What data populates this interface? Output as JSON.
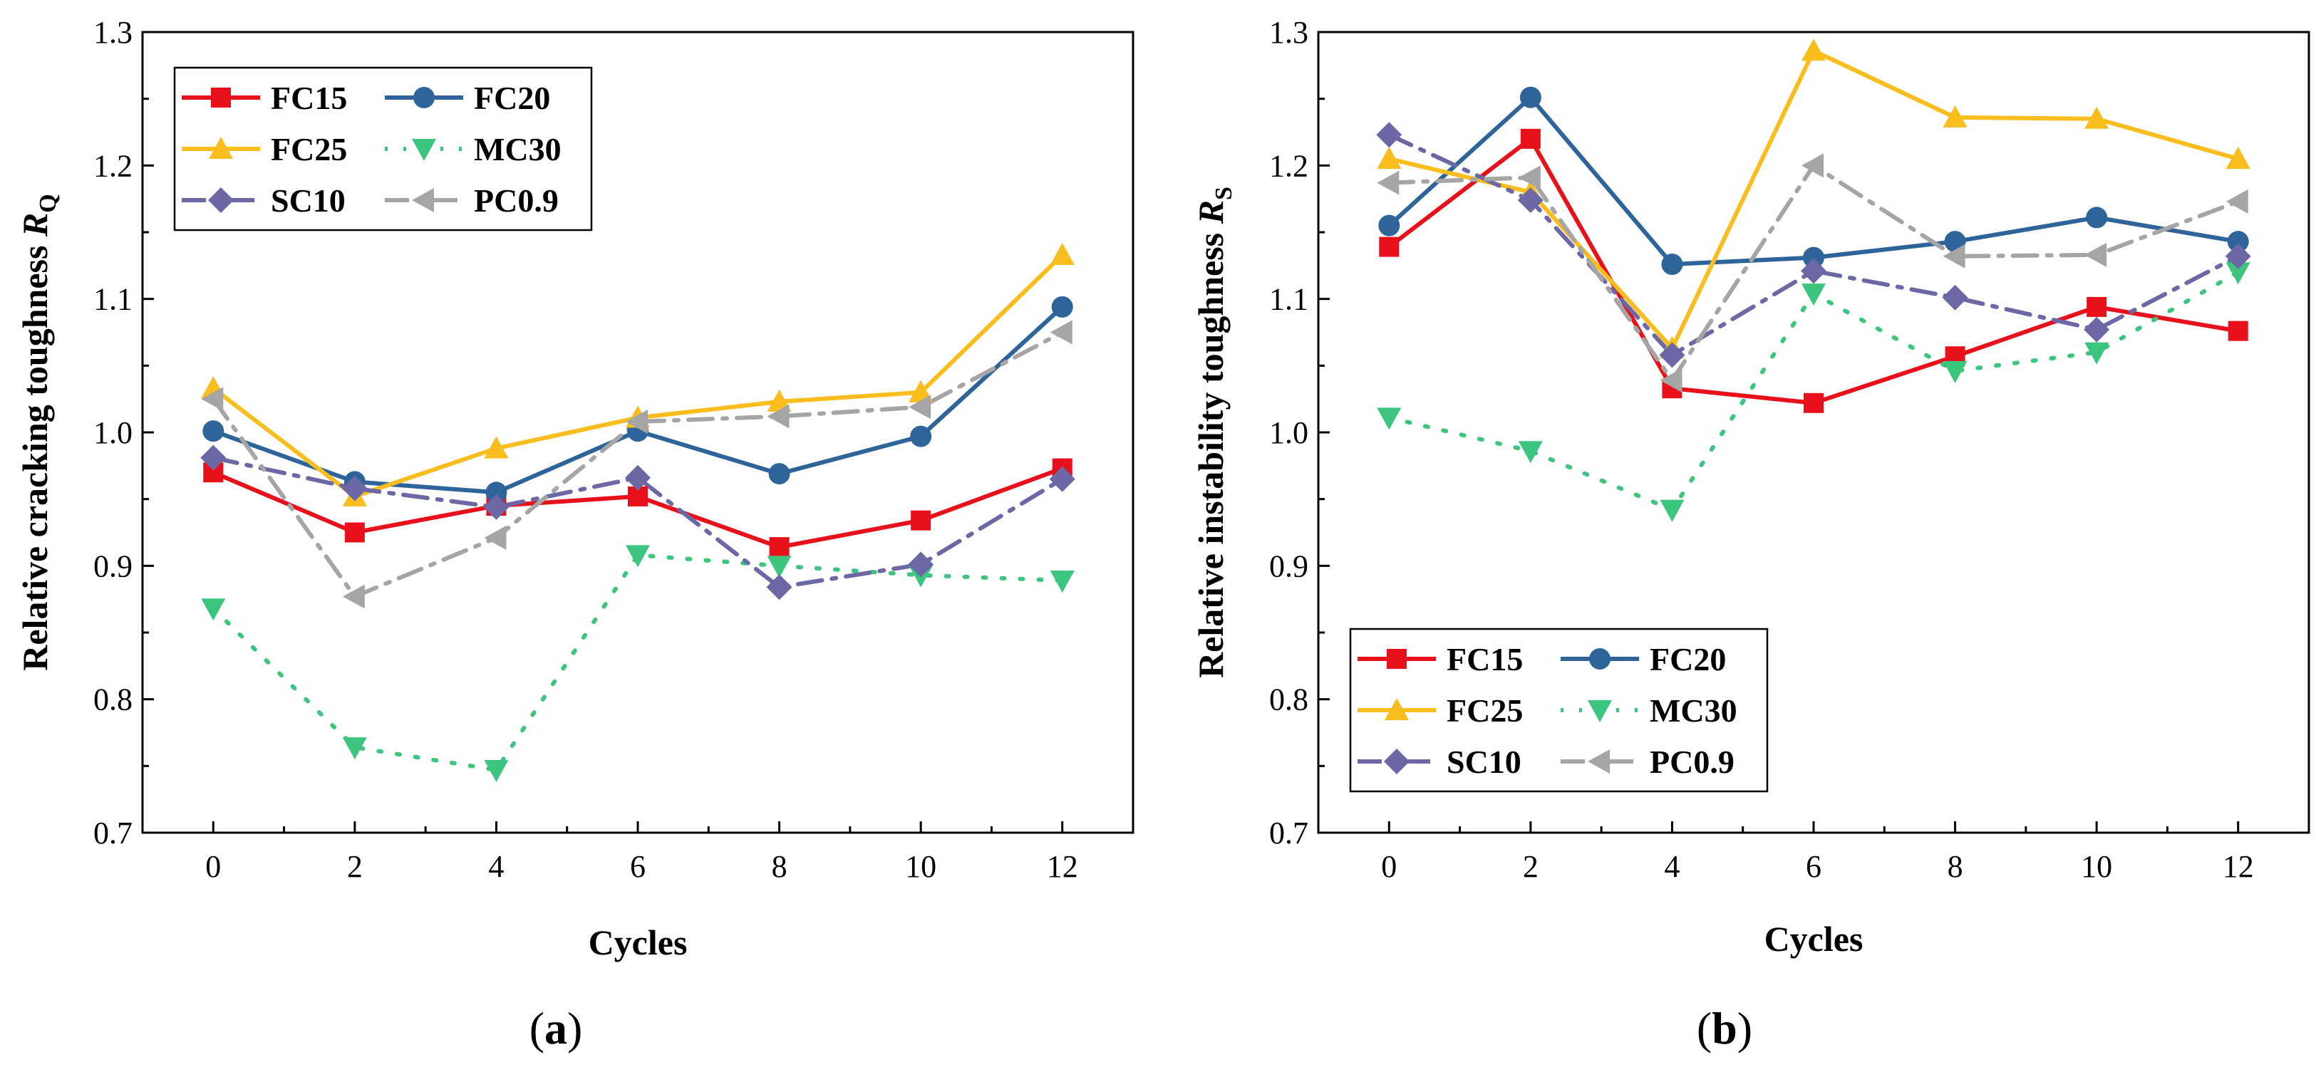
{
  "chart_data": [
    {
      "type": "line",
      "panel_label": "a",
      "title": "",
      "xlabel": "Cycles",
      "ylabel_main": "Relative cracking toughness ",
      "ylabel_symbol": "R",
      "ylabel_subscript": "Q",
      "x": [
        0,
        2,
        4,
        6,
        8,
        10,
        12
      ],
      "x_ticks": [
        "0",
        "2",
        "4",
        "6",
        "8",
        "10",
        "12"
      ],
      "y_ticks": [
        "0.7",
        "0.8",
        "0.9",
        "1.0",
        "1.1",
        "1.2",
        "1.3"
      ],
      "xlim": [
        -1,
        13
      ],
      "ylim": [
        0.7,
        1.3
      ],
      "grid": false,
      "legend_position": "top-left",
      "series": [
        {
          "name": "FC15",
          "color": "#e8101a",
          "marker": "square",
          "dash": "solid",
          "values": [
            0.97,
            0.925,
            0.945,
            0.952,
            0.914,
            0.934,
            0.973
          ]
        },
        {
          "name": "FC20",
          "color": "#2e6499",
          "marker": "circle",
          "dash": "solid",
          "values": [
            1.001,
            0.963,
            0.955,
            1.001,
            0.969,
            0.997,
            1.094
          ]
        },
        {
          "name": "FC25",
          "color": "#f9bd1d",
          "marker": "triangle-up",
          "dash": "solid",
          "values": [
            1.033,
            0.952,
            0.988,
            1.011,
            1.023,
            1.03,
            1.133
          ]
        },
        {
          "name": "MC30",
          "color": "#3cc57e",
          "marker": "triangle-down",
          "dash": "dot",
          "values": [
            0.868,
            0.764,
            0.747,
            0.908,
            0.9,
            0.893,
            0.889
          ]
        },
        {
          "name": "SC10",
          "color": "#6b68a5",
          "marker": "diamond",
          "dash": "dashdot",
          "values": [
            0.981,
            0.958,
            0.944,
            0.966,
            0.884,
            0.901,
            0.965
          ]
        },
        {
          "name": "PC0.9",
          "color": "#a5a5a5",
          "marker": "triangle-left",
          "dash": "dashdot",
          "values": [
            1.025,
            0.877,
            0.921,
            1.008,
            1.012,
            1.019,
            1.075
          ]
        }
      ]
    },
    {
      "type": "line",
      "panel_label": "b",
      "title": "",
      "xlabel": "Cycles",
      "ylabel_main": "Relative instability toughness ",
      "ylabel_symbol": "R",
      "ylabel_subscript": "S",
      "x": [
        0,
        2,
        4,
        6,
        8,
        10,
        12
      ],
      "x_ticks": [
        "0",
        "2",
        "4",
        "6",
        "8",
        "10",
        "12"
      ],
      "y_ticks": [
        "0.7",
        "0.8",
        "0.9",
        "1.0",
        "1.1",
        "1.2",
        "1.3"
      ],
      "xlim": [
        -1,
        13
      ],
      "ylim": [
        0.7,
        1.3
      ],
      "grid": false,
      "legend_position": "bottom-left",
      "series": [
        {
          "name": "FC15",
          "color": "#e8101a",
          "marker": "square",
          "dash": "solid",
          "values": [
            1.139,
            1.22,
            1.033,
            1.022,
            1.057,
            1.094,
            1.076
          ]
        },
        {
          "name": "FC20",
          "color": "#2e6499",
          "marker": "circle",
          "dash": "solid",
          "values": [
            1.155,
            1.251,
            1.126,
            1.131,
            1.143,
            1.161,
            1.143
          ]
        },
        {
          "name": "FC25",
          "color": "#f9bd1d",
          "marker": "triangle-up",
          "dash": "solid",
          "values": [
            1.205,
            1.18,
            1.063,
            1.286,
            1.236,
            1.235,
            1.205
          ]
        },
        {
          "name": "MC30",
          "color": "#3cc57e",
          "marker": "triangle-down",
          "dash": "dot",
          "values": [
            1.011,
            0.986,
            0.942,
            1.104,
            1.046,
            1.06,
            1.12
          ]
        },
        {
          "name": "SC10",
          "color": "#6b68a5",
          "marker": "diamond",
          "dash": "dashdot",
          "values": [
            1.223,
            1.174,
            1.058,
            1.121,
            1.101,
            1.077,
            1.132
          ]
        },
        {
          "name": "PC0.9",
          "color": "#a5a5a5",
          "marker": "triangle-left",
          "dash": "dashdot",
          "values": [
            1.187,
            1.191,
            1.039,
            1.2,
            1.132,
            1.133,
            1.173
          ]
        }
      ]
    }
  ]
}
